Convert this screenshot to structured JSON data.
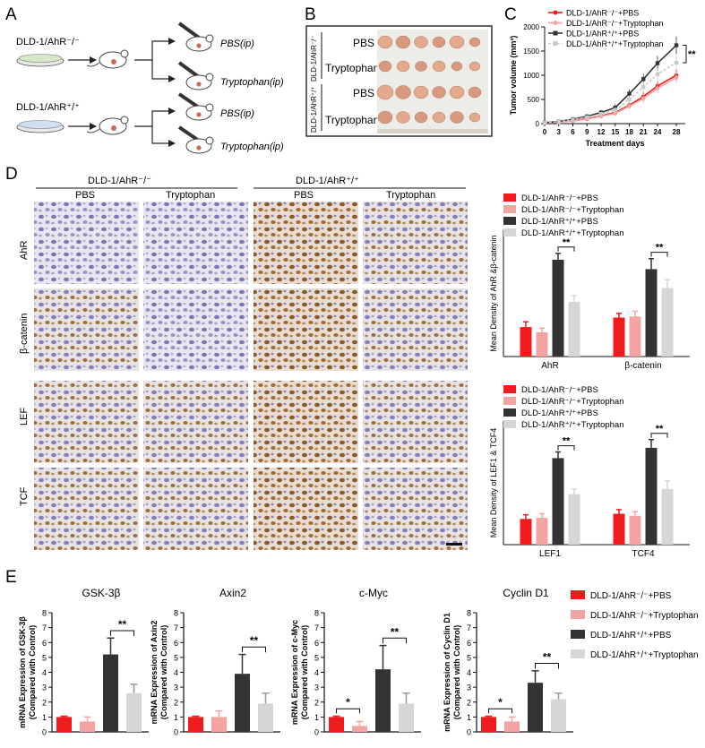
{
  "panel_letters": {
    "a": "A",
    "b": "B",
    "c": "C",
    "d": "D",
    "e": "E"
  },
  "colors": {
    "red": "#ee1c1c",
    "pink": "#f4a3a3",
    "black": "#333333",
    "grey": "#d6d6d6"
  },
  "icons": [
    "petri-dish-icon",
    "mouse-icon",
    "syringe-icon",
    "arrow-icon"
  ],
  "panel_a": {
    "cell_ko": "DLD-1/AhR⁻/⁻",
    "cell_wt": "DLD-1/AhR⁺/⁺",
    "treat_pbs": "PBS(ip)",
    "treat_trp": "Tryptophan(ip)"
  },
  "panel_b": {
    "group_ko": "DLD-1/AhR⁻/⁻",
    "group_wt": "DLD-1/AhR⁺/⁺",
    "row_labels": [
      "PBS",
      "Tryptophan",
      "PBS",
      "Tryptophan"
    ]
  },
  "panel_d": {
    "group_ko": "DLD-1/AhR⁻/⁻",
    "group_wt": "DLD-1/AhR⁺/⁺",
    "col_labels": [
      "PBS",
      "Tryptophan",
      "PBS",
      "Tryptophan"
    ],
    "row_labels": [
      "AhR",
      "β-catenin",
      "LEF",
      "TCF"
    ]
  },
  "chart_data": [
    {
      "id": "C",
      "type": "line",
      "title": "",
      "xlabel": "Treatment days",
      "ylabel": "Tumor volume (mm³)",
      "x": [
        0,
        3,
        6,
        9,
        12,
        15,
        18,
        21,
        24,
        28
      ],
      "ylim": [
        0,
        2000
      ],
      "yticks": [
        0,
        500,
        1000,
        1500,
        2000
      ],
      "series": [
        {
          "name": "DLD-1/AhR⁻/⁻+PBS",
          "color": "#ee1c1c",
          "marker": "circle",
          "dashed": false,
          "values": [
            15,
            30,
            60,
            100,
            160,
            230,
            380,
            560,
            780,
            1000
          ],
          "err": [
            10,
            15,
            20,
            30,
            40,
            50,
            70,
            90,
            100,
            120
          ]
        },
        {
          "name": "DLD-1/AhR⁻/⁻+Tryptophan",
          "color": "#f4a3a3",
          "marker": "circle",
          "dashed": false,
          "values": [
            15,
            28,
            55,
            90,
            150,
            210,
            360,
            520,
            730,
            950
          ],
          "err": [
            10,
            15,
            20,
            30,
            40,
            50,
            70,
            90,
            100,
            110
          ]
        },
        {
          "name": "DLD-1/AhR⁺/⁺+PBS",
          "color": "#333333",
          "marker": "square",
          "dashed": false,
          "values": [
            20,
            45,
            90,
            150,
            230,
            330,
            620,
            920,
            1250,
            1620
          ],
          "err": [
            10,
            20,
            30,
            40,
            50,
            70,
            90,
            110,
            150,
            180
          ]
        },
        {
          "name": "DLD-1/AhR⁺/⁺+Tryptophan",
          "color": "#c8c8c8",
          "marker": "square",
          "dashed": true,
          "values": [
            18,
            40,
            80,
            130,
            200,
            280,
            500,
            760,
            1020,
            1260
          ],
          "err": [
            10,
            20,
            30,
            40,
            50,
            60,
            80,
            100,
            120,
            150
          ]
        }
      ],
      "annotations": [
        "**"
      ]
    },
    {
      "id": "D1",
      "type": "bar",
      "title": "",
      "ylabel": "Mean Density of AhR &β-catenin",
      "categories": [
        "AhR",
        "β-catenin"
      ],
      "ylim": [
        0,
        1.2
      ],
      "legend": [
        "DLD-1/AhR⁻/⁻+PBS",
        "DLD-1/AhR⁻/⁻+Tryptophan",
        "DLD-1/AhR⁺/⁺+PBS",
        "DLD-1/AhR⁺/⁺+Tryptophan"
      ],
      "groups": [
        {
          "values": [
            0.28,
            0.23,
            0.92,
            0.52
          ],
          "err": [
            0.05,
            0.04,
            0.06,
            0.06
          ]
        },
        {
          "values": [
            0.37,
            0.38,
            0.83,
            0.65
          ],
          "err": [
            0.04,
            0.05,
            0.1,
            0.08
          ]
        }
      ],
      "annotations": [
        "**",
        "**"
      ]
    },
    {
      "id": "D2",
      "type": "bar",
      "title": "",
      "ylabel": "Mean Density of LEF1 & TCF4",
      "categories": [
        "LEF1",
        "TCF4"
      ],
      "ylim": [
        0,
        1.2
      ],
      "legend": [
        "DLD-1/AhR⁻/⁻+PBS",
        "DLD-1/AhR⁻/⁻+Tryptophan",
        "DLD-1/AhR⁺/⁺+PBS",
        "DLD-1/AhR⁺/⁺+Tryptophan"
      ],
      "groups": [
        {
          "values": [
            0.25,
            0.26,
            0.84,
            0.49
          ],
          "err": [
            0.04,
            0.04,
            0.06,
            0.05
          ]
        },
        {
          "values": [
            0.3,
            0.28,
            0.94,
            0.54
          ],
          "err": [
            0.04,
            0.04,
            0.08,
            0.08
          ]
        }
      ],
      "annotations": [
        "**",
        "**"
      ]
    },
    {
      "id": "E1",
      "type": "bar",
      "title": "GSK-3β",
      "ylabel": "mRNA Expression of GSK-3β (Compared with Control)",
      "ylim": [
        0,
        8
      ],
      "yticks": [
        0,
        1,
        2,
        3,
        4,
        5,
        6,
        7,
        8
      ],
      "values": [
        1.0,
        0.7,
        5.2,
        2.6
      ],
      "err": [
        0.05,
        0.3,
        1.1,
        0.6
      ],
      "annotations": [
        "**"
      ]
    },
    {
      "id": "E2",
      "type": "bar",
      "title": "Axin2",
      "ylabel": "mRNA Expression of Axin2 (Compared with Control)",
      "ylim": [
        0,
        8
      ],
      "yticks": [
        0,
        1,
        2,
        3,
        4,
        5,
        6,
        7,
        8
      ],
      "values": [
        1.0,
        1.0,
        3.9,
        1.9
      ],
      "err": [
        0.05,
        0.4,
        1.3,
        0.7
      ],
      "annotations": [
        "**"
      ]
    },
    {
      "id": "E3",
      "type": "bar",
      "title": "c-Myc",
      "ylabel": "mRNA Expression of c-Myc (Compared with Control)",
      "ylim": [
        0,
        8
      ],
      "yticks": [
        0,
        1,
        2,
        3,
        4,
        5,
        6,
        7,
        8
      ],
      "values": [
        1.0,
        0.4,
        4.2,
        1.9
      ],
      "err": [
        0.05,
        0.3,
        1.6,
        0.7
      ],
      "annotations": [
        "*",
        "**"
      ]
    },
    {
      "id": "E4",
      "type": "bar",
      "title": "Cyclin D1",
      "ylabel": "mRNA Expression of Cyclin D1 (Compared with Control)",
      "ylim": [
        0,
        8
      ],
      "yticks": [
        0,
        1,
        2,
        3,
        4,
        5,
        6,
        7,
        8
      ],
      "values": [
        1.0,
        0.7,
        3.3,
        2.2
      ],
      "err": [
        0.05,
        0.3,
        0.8,
        0.4
      ],
      "annotations": [
        "*",
        "**"
      ],
      "legend": [
        "DLD-1/AhR⁻/⁻+PBS",
        "DLD-1/AhR⁻/⁻+Tryptophan",
        "DLD-1/AhR⁺/⁺+PBS",
        "DLD-1/AhR⁺/⁺+Tryptophan"
      ]
    }
  ]
}
